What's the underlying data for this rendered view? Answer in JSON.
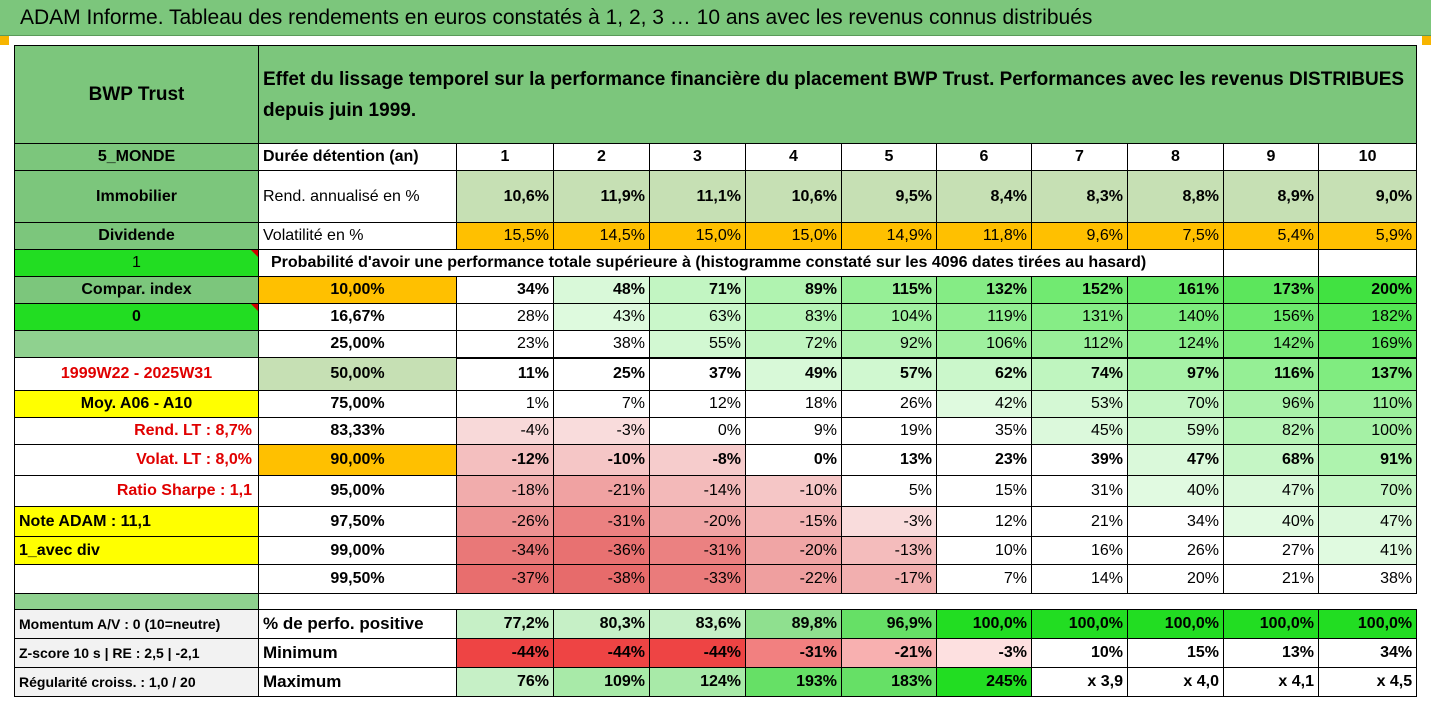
{
  "banner": "ADAM Informe. Tableau des rendements en euros constatés à 1, 2, 3 … 10 ans avec les revenus connus distribués",
  "fund_name": "BWP Trust",
  "description": "Effet du lissage temporel sur la performance financière du placement BWP Trust. Performances avec les revenus DISTRIBUES depuis juin 1999.",
  "left": {
    "zone": "5_MONDE",
    "category": "Immobilier",
    "income": "Dividende",
    "one": "1",
    "compar": "Compar. index",
    "zero": "0",
    "period": "1999W22 - 2025W31",
    "moy": "Moy. A06 - A10",
    "rend_lt": "Rend. LT :   8,7%",
    "volat_lt": "Volat. LT :   8,0%",
    "sharpe": "Ratio Sharpe :   1,1",
    "note": "Note ADAM : 11,1",
    "variant": "1_avec div",
    "momentum": "Momentum A/V : 0 (10=neutre)",
    "zscore": "Z-score 10 s  |  RE : 2,5  |  -2,1",
    "regularite": "Régularité croiss. : 1,0 / 20"
  },
  "labels": {
    "duration": "Durée détention (an)",
    "rend": "Rend. annualisé en %",
    "vol": "Volatilité en %",
    "prob": "Probabilité d'avoir une performance totale supérieure à (histogramme constaté sur les 4096 dates tirées au hasard)",
    "pos": "% de perfo. positive",
    "min": "Minimum",
    "max": "Maximum"
  },
  "years": [
    "1",
    "2",
    "3",
    "4",
    "5",
    "6",
    "7",
    "8",
    "9",
    "10"
  ],
  "rend": [
    "10,6%",
    "11,9%",
    "11,1%",
    "10,6%",
    "9,5%",
    "8,4%",
    "8,3%",
    "8,8%",
    "8,9%",
    "9,0%"
  ],
  "vol": [
    "15,5%",
    "14,5%",
    "15,0%",
    "15,0%",
    "14,9%",
    "11,8%",
    "9,6%",
    "7,5%",
    "5,4%",
    "5,9%"
  ],
  "quantiles": [
    {
      "p": "10,00%",
      "v": [
        "34%",
        "48%",
        "71%",
        "89%",
        "115%",
        "132%",
        "152%",
        "161%",
        "173%",
        "200%"
      ]
    },
    {
      "p": "16,67%",
      "v": [
        "28%",
        "43%",
        "63%",
        "83%",
        "104%",
        "119%",
        "131%",
        "140%",
        "156%",
        "182%"
      ]
    },
    {
      "p": "25,00%",
      "v": [
        "23%",
        "38%",
        "55%",
        "72%",
        "92%",
        "106%",
        "112%",
        "124%",
        "142%",
        "169%"
      ]
    },
    {
      "p": "50,00%",
      "v": [
        "11%",
        "25%",
        "37%",
        "49%",
        "57%",
        "62%",
        "74%",
        "97%",
        "116%",
        "137%"
      ]
    },
    {
      "p": "75,00%",
      "v": [
        "1%",
        "7%",
        "12%",
        "18%",
        "26%",
        "42%",
        "53%",
        "70%",
        "96%",
        "110%"
      ]
    },
    {
      "p": "83,33%",
      "v": [
        "-4%",
        "-3%",
        "0%",
        "9%",
        "19%",
        "35%",
        "45%",
        "59%",
        "82%",
        "100%"
      ]
    },
    {
      "p": "90,00%",
      "v": [
        "-12%",
        "-10%",
        "-8%",
        "0%",
        "13%",
        "23%",
        "39%",
        "47%",
        "68%",
        "91%"
      ]
    },
    {
      "p": "95,00%",
      "v": [
        "-18%",
        "-21%",
        "-14%",
        "-10%",
        "5%",
        "15%",
        "31%",
        "40%",
        "47%",
        "70%"
      ]
    },
    {
      "p": "97,50%",
      "v": [
        "-26%",
        "-31%",
        "-20%",
        "-15%",
        "-3%",
        "12%",
        "21%",
        "34%",
        "40%",
        "47%"
      ]
    },
    {
      "p": "99,00%",
      "v": [
        "-34%",
        "-36%",
        "-31%",
        "-20%",
        "-13%",
        "10%",
        "16%",
        "26%",
        "27%",
        "41%"
      ]
    },
    {
      "p": "99,50%",
      "v": [
        "-37%",
        "-38%",
        "-33%",
        "-22%",
        "-17%",
        "7%",
        "14%",
        "20%",
        "21%",
        "38%"
      ]
    }
  ],
  "positive": [
    "77,2%",
    "80,3%",
    "83,6%",
    "89,8%",
    "96,9%",
    "100,0%",
    "100,0%",
    "100,0%",
    "100,0%",
    "100,0%"
  ],
  "minimum": [
    "-44%",
    "-44%",
    "-44%",
    "-31%",
    "-21%",
    "-3%",
    "10%",
    "15%",
    "13%",
    "34%"
  ],
  "maximum": [
    "76%",
    "109%",
    "124%",
    "193%",
    "183%",
    "245%",
    "x 3,9",
    "x 4,0",
    "x 4,1",
    "x 4,5"
  ],
  "colors": {
    "banner": "#7cc67c",
    "orange": "#ffc000",
    "yellow": "#ffff00",
    "bright_green": "#22dd22",
    "red_text": "#e00000"
  }
}
